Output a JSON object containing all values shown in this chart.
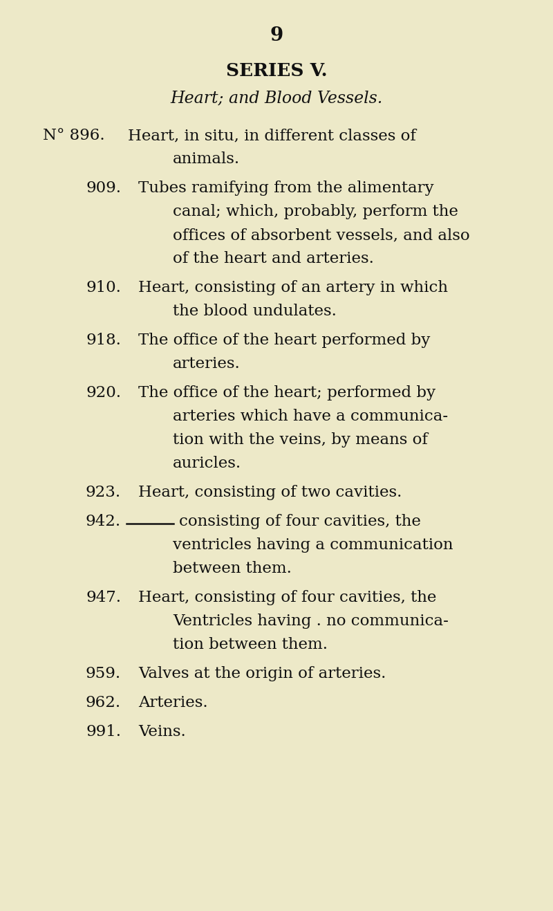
{
  "background_color": "#ede9c8",
  "page_number": "9",
  "series_title": "SERIES V.",
  "subtitle": "Heart; and Blood Vessels.",
  "entries": [
    {
      "number": "N° 896.",
      "lines": [
        "Heart, in situ, in different classes of",
        "animals."
      ],
      "dash": false,
      "is_no": true
    },
    {
      "number": "909.",
      "lines": [
        "Tubes ramifying from the alimentary",
        "canal; which, probably, perform the",
        "offices of absorbent vessels, and also",
        "of the heart and arteries."
      ],
      "dash": false,
      "is_no": false
    },
    {
      "number": "910.",
      "lines": [
        "Heart, consisting of an artery in which",
        "the blood undulates."
      ],
      "dash": false,
      "is_no": false
    },
    {
      "number": "918.",
      "lines": [
        "The office of the heart performed by",
        "arteries."
      ],
      "dash": false,
      "is_no": false
    },
    {
      "number": "920.",
      "lines": [
        "The office of the heart; performed by",
        "arteries which have a communica-",
        "tion with the veins, by means of",
        "auricles."
      ],
      "dash": false,
      "is_no": false
    },
    {
      "number": "923.",
      "lines": [
        "Heart, consisting of two cavities."
      ],
      "dash": false,
      "is_no": false
    },
    {
      "number": "942.",
      "lines": [
        "consisting of four cavities, the",
        "ventricles having a communication",
        "between them."
      ],
      "dash": true,
      "is_no": false
    },
    {
      "number": "947.",
      "lines": [
        "Heart, consisting of four cavities, the",
        "Ventricles having . no communica-",
        "tion between them."
      ],
      "dash": false,
      "is_no": false
    },
    {
      "number": "959.",
      "lines": [
        "Valves at the origin of arteries."
      ],
      "dash": false,
      "is_no": false
    },
    {
      "number": "962.",
      "lines": [
        "Arteries."
      ],
      "dash": false,
      "is_no": false
    },
    {
      "number": "991.",
      "lines": [
        "Veins."
      ],
      "dash": false,
      "is_no": false
    }
  ],
  "text_color": "#111111",
  "font_size_page_num": 20,
  "font_size_series": 19,
  "font_size_subtitle": 17,
  "font_size_entry": 16.5
}
